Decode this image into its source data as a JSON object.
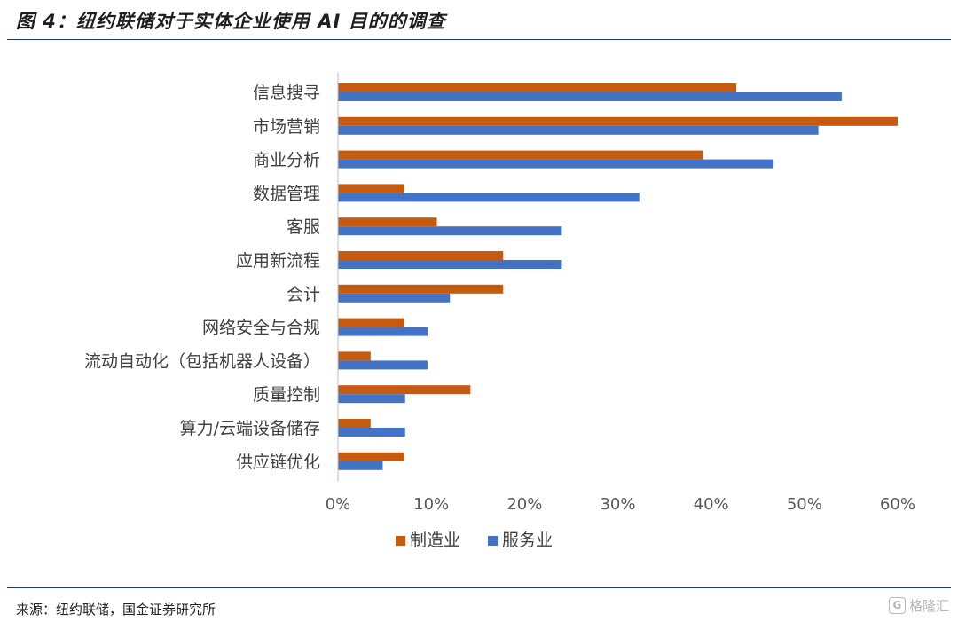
{
  "figure": {
    "title": "图 4：纽约联储对于实体企业使用 AI 目的的调查",
    "source": "来源：纽约联储，国金证券研究所",
    "watermark": "格隆汇",
    "watermark_icon": "G"
  },
  "chart_data": {
    "type": "bar",
    "orientation": "horizontal",
    "title": "",
    "xlabel": "",
    "ylabel": "",
    "xlim": [
      0,
      0.6
    ],
    "x_ticks": [
      0,
      0.1,
      0.2,
      0.3,
      0.4,
      0.5,
      0.6
    ],
    "x_tick_labels": [
      "0%",
      "10%",
      "20%",
      "30%",
      "40%",
      "50%",
      "60%"
    ],
    "grid": false,
    "legend_position": "bottom",
    "categories": [
      "信息搜寻",
      "市场营销",
      "商业分析",
      "数据管理",
      "客服",
      "应用新流程",
      "会计",
      "网络安全与合规",
      "流动自动化（包括机器人设备）",
      "质量控制",
      "算力/云端设备储存",
      "供应链优化"
    ],
    "series": [
      {
        "name": "制造业",
        "color": "#c55a11",
        "values": [
          0.427,
          0.6,
          0.391,
          0.071,
          0.106,
          0.177,
          0.177,
          0.071,
          0.035,
          0.142,
          0.035,
          0.071
        ]
      },
      {
        "name": "服务业",
        "color": "#4472c4",
        "values": [
          0.54,
          0.515,
          0.467,
          0.323,
          0.24,
          0.24,
          0.12,
          0.096,
          0.096,
          0.072,
          0.072,
          0.048
        ]
      }
    ]
  }
}
